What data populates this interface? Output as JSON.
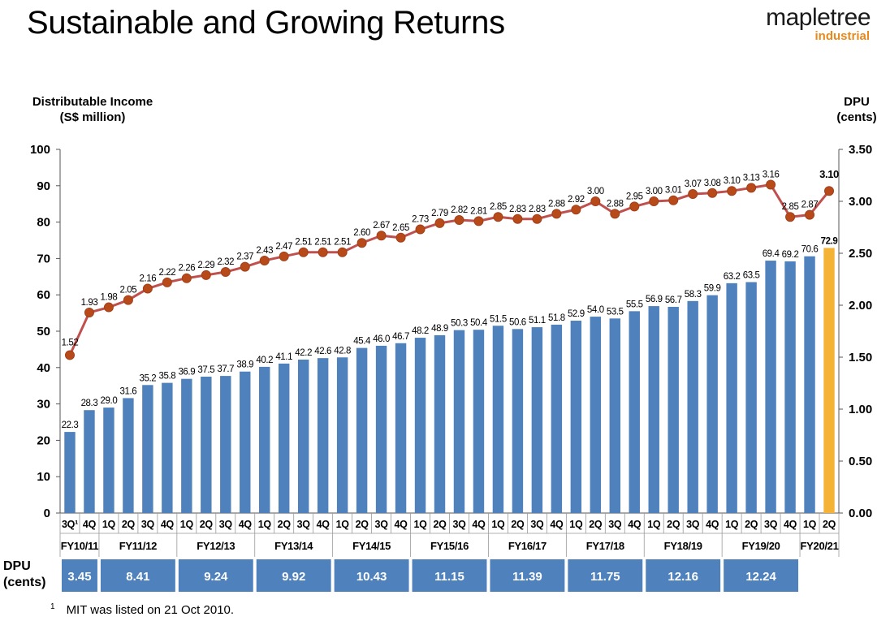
{
  "header": {
    "title": "Sustainable and Growing Returns",
    "logo_name": "mapletree",
    "logo_sub": "industrial"
  },
  "colors": {
    "bar": "#4f81bd",
    "bar_highlight": "#f5b335",
    "line": "#c0504d",
    "marker": "#b84a1a",
    "fy_box": "#4f81bd"
  },
  "chart_data": {
    "type": "bar",
    "title": "",
    "ylabel": "Distributable Income\n(S$ million)",
    "y2label": "DPU\n(cents)",
    "ylim": [
      0,
      100
    ],
    "y2lim": [
      0,
      3.5
    ],
    "yticks": [
      "0",
      "10",
      "20",
      "30",
      "40",
      "50",
      "60",
      "70",
      "80",
      "90",
      "100"
    ],
    "y2ticks": [
      "0.00",
      "0.50",
      "1.00",
      "1.50",
      "2.00",
      "2.50",
      "3.00",
      "3.50"
    ],
    "categories": [
      "3Q¹",
      "4Q",
      "1Q",
      "2Q",
      "3Q",
      "4Q",
      "1Q",
      "2Q",
      "3Q",
      "4Q",
      "1Q",
      "2Q",
      "3Q",
      "4Q",
      "1Q",
      "2Q",
      "3Q",
      "4Q",
      "1Q",
      "2Q",
      "3Q",
      "4Q",
      "1Q",
      "2Q",
      "3Q",
      "4Q",
      "1Q",
      "2Q",
      "3Q",
      "4Q",
      "1Q",
      "2Q",
      "3Q",
      "4Q",
      "1Q",
      "2Q",
      "3Q",
      "4Q",
      "1Q",
      "2Q"
    ],
    "series": [
      {
        "values": [
          22.3,
          28.3,
          29.0,
          31.6,
          35.2,
          35.8,
          36.9,
          37.5,
          37.7,
          38.9,
          40.2,
          41.1,
          42.2,
          42.6,
          42.8,
          45.4,
          46.0,
          46.7,
          48.2,
          48.9,
          50.3,
          50.4,
          51.5,
          50.6,
          51.1,
          51.8,
          52.9,
          54.0,
          53.5,
          55.5,
          56.9,
          56.7,
          58.3,
          59.9,
          63.2,
          63.5,
          69.4,
          69.2,
          70.6,
          72.9
        ],
        "labels": [
          "22.3",
          "28.3",
          "29.0",
          "31.6",
          "35.2",
          "35.8",
          "36.9",
          "37.5",
          "37.7",
          "38.9",
          "40.2",
          "41.1",
          "42.2",
          "42.6",
          "42.8",
          "45.4",
          "46.0",
          "46.7",
          "48.2",
          "48.9",
          "50.3",
          "50.4",
          "51.5",
          "50.6",
          "51.1",
          "51.8",
          "52.9",
          "54.0",
          "53.5",
          "55.5",
          "56.9",
          "56.7",
          "58.3",
          "59.9",
          "63.2",
          "63.5",
          "69.4",
          "69.2",
          "70.6",
          "72.9"
        ]
      },
      {
        "values": [
          1.52,
          1.93,
          1.98,
          2.05,
          2.16,
          2.22,
          2.26,
          2.29,
          2.32,
          2.37,
          2.43,
          2.47,
          2.51,
          2.51,
          2.51,
          2.6,
          2.67,
          2.65,
          2.73,
          2.79,
          2.82,
          2.81,
          2.85,
          2.83,
          2.83,
          2.88,
          2.92,
          3.0,
          2.88,
          2.95,
          3.0,
          3.01,
          3.07,
          3.08,
          3.1,
          3.13,
          3.16,
          2.85,
          2.87,
          3.1
        ],
        "labels": [
          "1.52",
          "1.93",
          "1.98",
          "2.05",
          "2.16",
          "2.22",
          "2.26",
          "2.29",
          "2.32",
          "2.37",
          "2.43",
          "2.47",
          "2.51",
          "2.51",
          "2.51",
          "2.60",
          "2.67",
          "2.65",
          "2.73",
          "2.79",
          "2.82",
          "2.81",
          "2.85",
          "2.83",
          "2.83",
          "2.88",
          "2.92",
          "3.00",
          "2.88",
          "2.95",
          "3.00",
          "3.01",
          "3.07",
          "3.08",
          "3.10",
          "3.13",
          "3.16",
          "2.85",
          "2.87",
          "3.10"
        ]
      }
    ],
    "highlight_index": 39,
    "fiscal_years": [
      {
        "label": "FY10/11",
        "start": 0,
        "count": 2,
        "dpu": "3.45"
      },
      {
        "label": "FY11/12",
        "start": 2,
        "count": 4,
        "dpu": "8.41"
      },
      {
        "label": "FY12/13",
        "start": 6,
        "count": 4,
        "dpu": "9.24"
      },
      {
        "label": "FY13/14",
        "start": 10,
        "count": 4,
        "dpu": "9.92"
      },
      {
        "label": "FY14/15",
        "start": 14,
        "count": 4,
        "dpu": "10.43"
      },
      {
        "label": "FY15/16",
        "start": 18,
        "count": 4,
        "dpu": "11.15"
      },
      {
        "label": "FY16/17",
        "start": 22,
        "count": 4,
        "dpu": "11.39"
      },
      {
        "label": "FY17/18",
        "start": 26,
        "count": 4,
        "dpu": "11.75"
      },
      {
        "label": "FY18/19",
        "start": 30,
        "count": 4,
        "dpu": "12.16"
      },
      {
        "label": "FY19/20",
        "start": 34,
        "count": 4,
        "dpu": "12.24"
      },
      {
        "label": "FY20/21",
        "start": 38,
        "count": 2,
        "dpu": ""
      }
    ],
    "dpu_row_label": "DPU\n(cents)",
    "legend": "none"
  },
  "footnote": {
    "marker": "1",
    "text": "MIT was listed on 21 Oct 2010."
  }
}
